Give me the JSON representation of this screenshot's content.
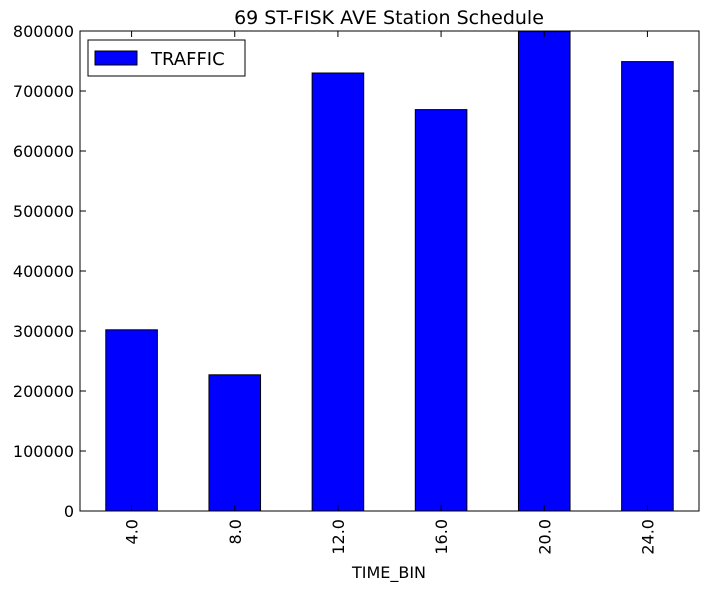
{
  "chart_data": {
    "type": "bar",
    "title": "69 ST-FISK AVE Station Schedule",
    "xlabel": "TIME_BIN",
    "ylabel": "",
    "categories": [
      "4.0",
      "8.0",
      "12.0",
      "16.0",
      "20.0",
      "24.0"
    ],
    "series": [
      {
        "name": "TRAFFIC",
        "color": "#0000ff",
        "values": [
          302000,
          227000,
          730000,
          669000,
          799000,
          749000
        ]
      }
    ],
    "ylim": [
      0,
      800000
    ],
    "yticks": [
      "0",
      "100000",
      "200000",
      "300000",
      "400000",
      "500000",
      "600000",
      "700000",
      "800000"
    ],
    "grid": false,
    "legend_position": "top-left"
  }
}
